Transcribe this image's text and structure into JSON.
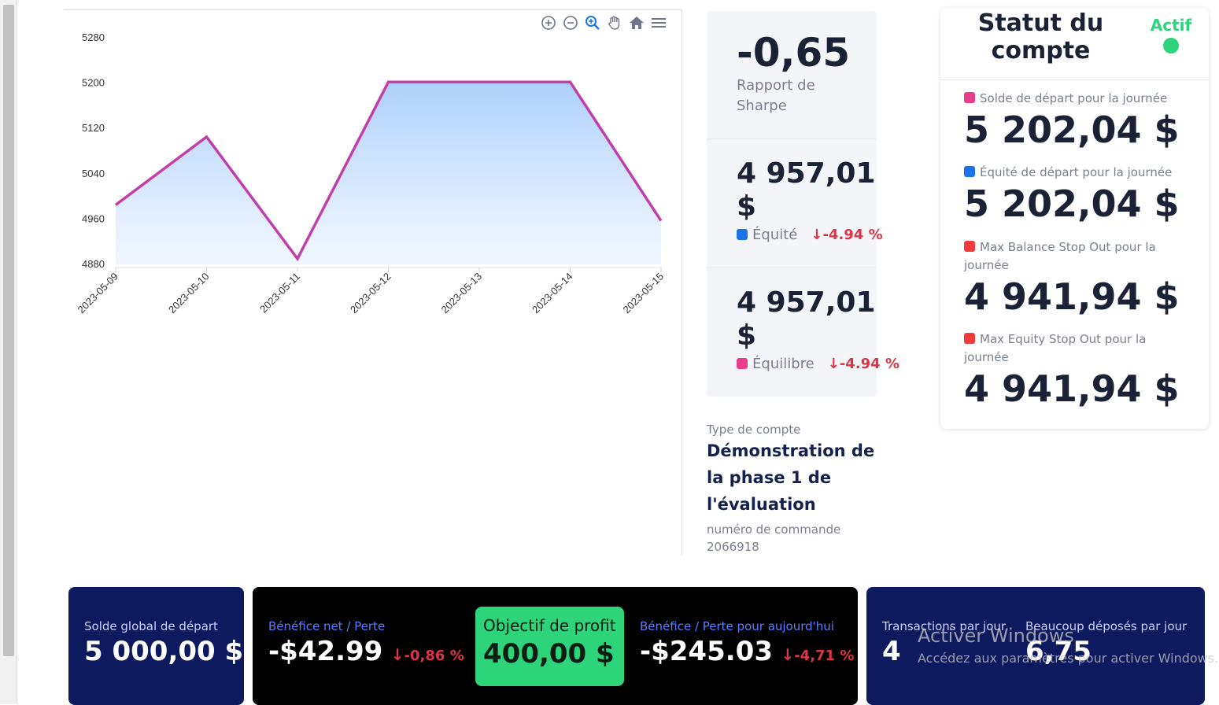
{
  "chart_data": {
    "type": "area",
    "x": [
      "2023-05-09",
      "2023-05-10",
      "2023-05-11",
      "2023-05-12",
      "2023-05-13",
      "2023-05-14",
      "2023-05-15"
    ],
    "values": [
      4985,
      5105,
      4890,
      5202,
      5202,
      5202,
      4957
    ],
    "ylim": [
      4880,
      5280
    ],
    "yticks": [
      "5280",
      "5200",
      "5120",
      "5040",
      "4960",
      "4880"
    ],
    "line_color": "#c13fa8",
    "fill_color": "#a9cdfa"
  },
  "toolbar": {
    "icons": [
      "zoom-in-icon",
      "zoom-out-icon",
      "magnifier-icon",
      "pan-hand-icon",
      "home-icon",
      "menu-icon"
    ]
  },
  "stats": {
    "sharpe_value": "-0,65",
    "sharpe_label_1": "Rapport de",
    "sharpe_label_2": "Sharpe",
    "equity_value_1": "4 957,01",
    "equity_value_2": "$",
    "equity_label": "Équité",
    "equity_change": "-4.94 %",
    "balance_value_1": "4 957,01",
    "balance_value_2": "$",
    "balance_label": "Équilibre",
    "balance_change": "-4.94 %",
    "colors": {
      "equity": "#1a73e8",
      "balance": "#e83e8c",
      "down": "#dc3545"
    }
  },
  "account": {
    "type_label": "Type de compte",
    "type_value_1": "Démonstration de",
    "type_value_2": "la phase 1 de",
    "type_value_3": "l'évaluation",
    "order_label": "numéro de commande",
    "order_value": "2066918"
  },
  "status": {
    "title_1": "Statut du",
    "title_2": "compte",
    "state": "Actif",
    "state_color": "#2ed47a",
    "items": [
      {
        "label": "Solde de départ pour la journée",
        "label_2": "",
        "value": "5 202,04 $",
        "color": "#e83e8c"
      },
      {
        "label": "Équité de départ pour la journée",
        "label_2": "",
        "value": "5 202,04 $",
        "color": "#1a73e8"
      },
      {
        "label": "Max Balance Stop Out pour la",
        "label_2": "journée",
        "value": "4 941,94 $",
        "color": "#ef3b3b"
      },
      {
        "label": "Max Equity Stop Out pour la",
        "label_2": "journée",
        "value": "4 941,94 $",
        "color": "#ef3b3b"
      }
    ]
  },
  "bottom": {
    "global_label": "Solde global de départ",
    "global_value": "5 000,00 $",
    "net_label": "Bénéfice net / Perte",
    "net_value": "-$42.99",
    "net_change": "-0,86 %",
    "objective_label": "Objectif de profit",
    "objective_value": "400,00 $",
    "today_label": "Bénéfice / Perte pour aujourd'hui",
    "today_value": "-$245.03",
    "today_change": "-4,71 %",
    "trades_label": "Transactions par jour",
    "trades_value": "4",
    "deposits_label": "Beaucoup déposés par jour",
    "deposits_value": "6,75",
    "colors": {
      "navy": "#0d1b5e",
      "black": "#000000",
      "green": "#2ed47a"
    }
  },
  "watermark": {
    "line1": "Activer Windows",
    "line2": "Accédez aux paramètres pour activer Windows."
  }
}
